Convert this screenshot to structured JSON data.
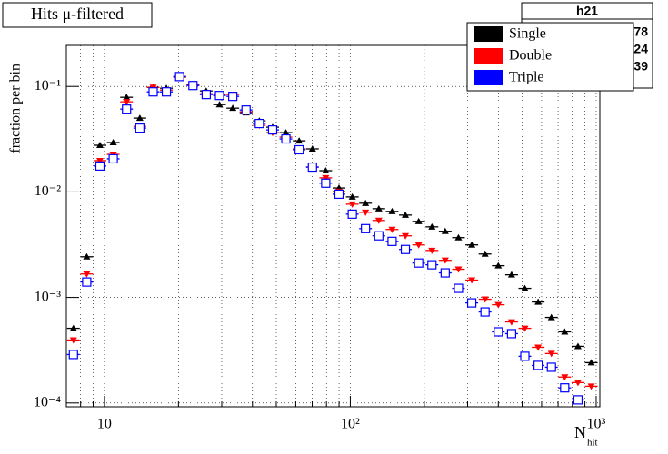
{
  "chart_data": {
    "type": "scatter",
    "title": "Hits μ-filtered",
    "y_label": "fraction per bin",
    "x_label": {
      "main": "N",
      "sub": "hit"
    },
    "stats_title": "h21",
    "stats_values": [
      "78",
      "24",
      "39"
    ],
    "xlog": true,
    "ylog": true,
    "grid": true,
    "legend": "top-right",
    "xlim": [
      7,
      1035
    ],
    "ylim": [
      9.2e-05,
      0.245
    ],
    "xticks": [
      10,
      {
        "value": 100,
        "label": "10²"
      },
      {
        "value": 1000,
        "label": "10³"
      }
    ],
    "xminorticks": [
      8,
      9,
      20,
      30,
      40,
      50,
      60,
      70,
      80,
      90,
      200,
      300,
      400,
      500,
      600,
      700,
      800,
      900
    ],
    "yticks": [
      {
        "value": 0.0001,
        "label": "10⁻⁴"
      },
      {
        "value": 0.001,
        "label": "10⁻³"
      },
      {
        "value": 0.01,
        "label": "10⁻²"
      },
      {
        "value": 0.1,
        "label": "10⁻¹"
      }
    ],
    "x": [
      7.48,
      8.47,
      9.59,
      10.86,
      12.3,
      13.93,
      15.78,
      17.86,
      20.23,
      22.91,
      25.94,
      29.38,
      33.27,
      37.67,
      42.66,
      48.31,
      54.7,
      61.94,
      70.15,
      79.43,
      89.95,
      101.9,
      115.3,
      130.6,
      147.9,
      167.5,
      189.7,
      214.8,
      243.2,
      275.4,
      311.9,
      353.2,
      399.9,
      452.9,
      512.9,
      580.8,
      657.7,
      744.7,
      843.4,
      955.0
    ],
    "series": [
      {
        "name": "Single",
        "color": "#000000",
        "marker": "triangle-up",
        "values": [
          0.00051,
          0.00243,
          0.0277,
          0.0294,
          0.0789,
          0.0501,
          0.098,
          0.0962,
          0.124,
          0.104,
          0.0906,
          0.0673,
          0.0622,
          0.0564,
          0.0472,
          0.0411,
          0.0365,
          0.0305,
          0.0256,
          0.0159,
          0.0109,
          0.00897,
          0.00782,
          0.00694,
          0.00654,
          0.00604,
          0.00526,
          0.00467,
          0.00424,
          0.00369,
          0.00315,
          0.00258,
          0.002,
          0.00164,
          0.00122,
          0.000906,
          0.000647,
          0.000472,
          0.000344,
          0.000241
        ]
      },
      {
        "name": "Double",
        "color": "#ff0000",
        "marker": "triangle-down",
        "values": [
          0.000395,
          0.00167,
          0.0198,
          0.0227,
          0.0715,
          0.0419,
          0.098,
          0.0924,
          0.122,
          0.104,
          0.0854,
          0.0838,
          0.0838,
          0.0575,
          0.0428,
          0.0365,
          0.0331,
          0.0256,
          0.0172,
          0.0136,
          0.0101,
          0.00766,
          0.00641,
          0.00537,
          0.00441,
          0.00384,
          0.00315,
          0.00279,
          0.00225,
          0.00185,
          0.00146,
          0.000962,
          0.000853,
          0.000586,
          0.00051,
          0.000337,
          0.000294,
          0.000176,
          0.000156,
          0.000144
        ]
      },
      {
        "name": "Triple",
        "color": "#0000ff",
        "marker": "open-square",
        "values": [
          0.000288,
          0.0014,
          0.0176,
          0.0206,
          0.061,
          0.0403,
          0.0888,
          0.0888,
          0.124,
          0.102,
          0.0838,
          0.0821,
          0.0805,
          0.0598,
          0.0445,
          0.0387,
          0.0318,
          0.0251,
          0.0172,
          0.0121,
          0.00952,
          0.00616,
          0.00449,
          0.00384,
          0.0034,
          0.00285,
          0.00212,
          0.00204,
          0.00171,
          0.00122,
          0.000888,
          0.000729,
          0.000472,
          0.000454,
          0.000277,
          0.000227,
          0.000218,
          0.000139,
          0.000107,
          null
        ]
      }
    ]
  }
}
